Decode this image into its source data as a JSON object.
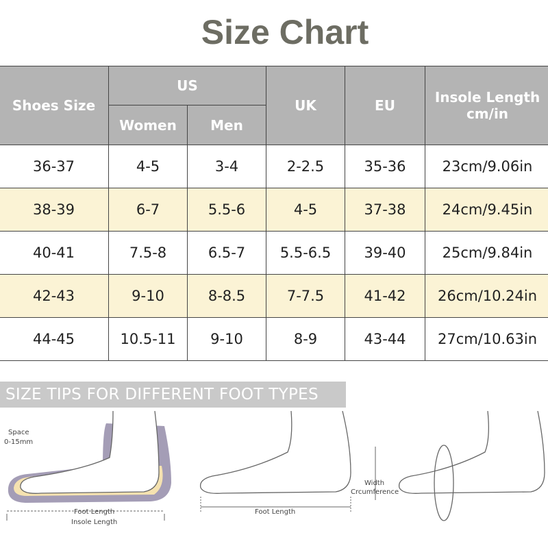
{
  "title": "Size Chart",
  "table": {
    "header": {
      "shoes_size": "Shoes Size",
      "us": "US",
      "women": "Women",
      "men": "Men",
      "uk": "UK",
      "eu": "EU",
      "insole": "Insole Length cm/in"
    },
    "rows": [
      [
        "36-37",
        "4-5",
        "3-4",
        "2-2.5",
        "35-36",
        "23cm/9.06in"
      ],
      [
        "38-39",
        "6-7",
        "5.5-6",
        "4-5",
        "37-38",
        "24cm/9.45in"
      ],
      [
        "40-41",
        "7.5-8",
        "6.5-7",
        "5.5-6.5",
        "39-40",
        "25cm/9.84in"
      ],
      [
        "42-43",
        "9-10",
        "8-8.5",
        "7-7.5",
        "41-42",
        "26cm/10.24in"
      ],
      [
        "44-45",
        "10.5-11",
        "9-10",
        "8-9",
        "43-44",
        "27cm/10.63in"
      ]
    ]
  },
  "tips": {
    "banner": "SIZE TIPS FOR DIFFERENT FOOT TYPES",
    "space": "Space",
    "space_range": "0-15mm",
    "foot_length_1": "Foot Length",
    "insole_length": "Insole Length",
    "foot_length_2": "Foot Length",
    "width": "Width",
    "circumference": "Crcumference"
  }
}
